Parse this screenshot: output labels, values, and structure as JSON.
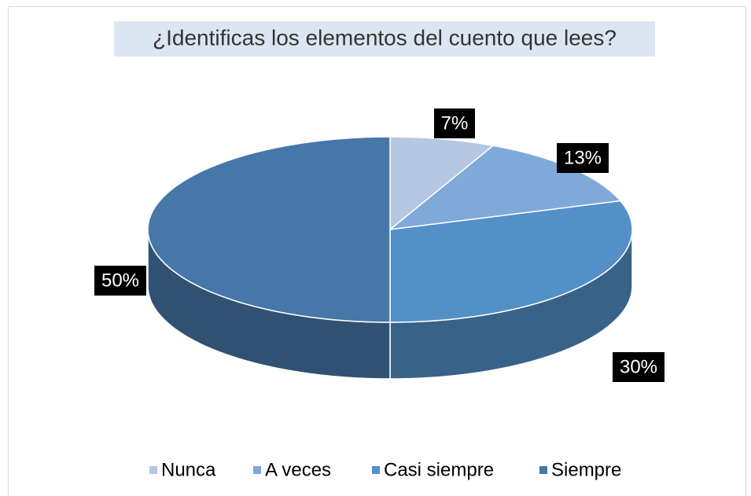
{
  "chart_data": {
    "type": "pie",
    "title": "¿Identificas los elementos del cuento que lees?",
    "categories": [
      "Nunca",
      "A veces",
      "Casi siempre",
      "Siempre"
    ],
    "values": [
      7,
      13,
      30,
      50
    ],
    "value_labels": [
      "7%",
      "13%",
      "30%",
      "50%"
    ],
    "colors": [
      "#b4c7e3",
      "#7fa9d8",
      "#5490c8",
      "#4677a8"
    ],
    "legend": "bottom"
  }
}
